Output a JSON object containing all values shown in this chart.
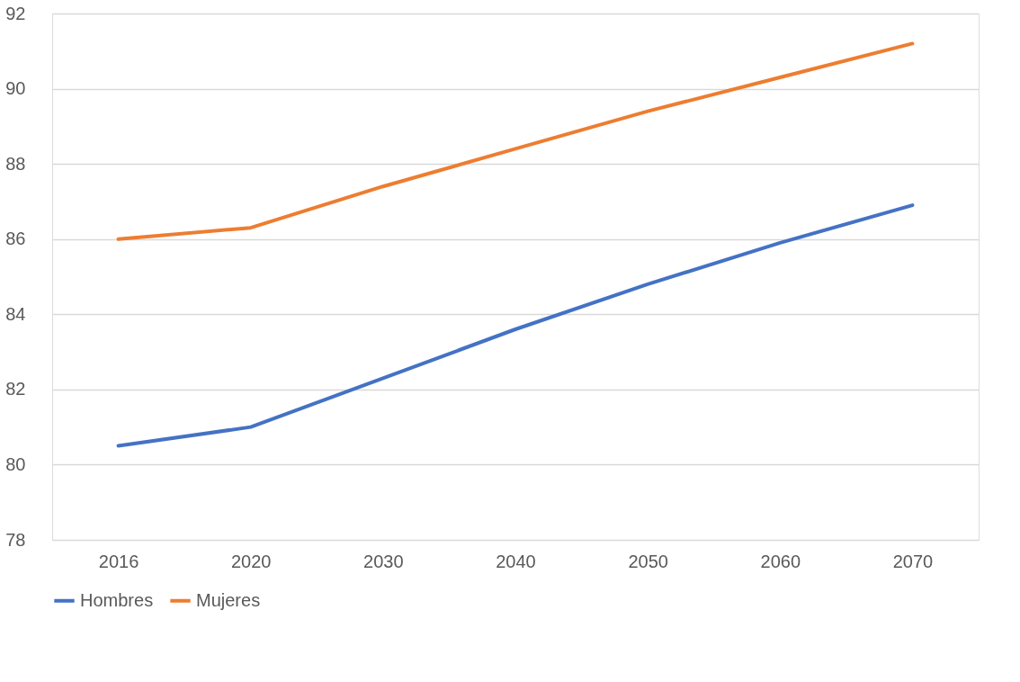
{
  "chart_data": {
    "type": "line",
    "categories": [
      "2016",
      "2020",
      "2030",
      "2040",
      "2050",
      "2060",
      "2070"
    ],
    "series": [
      {
        "name": "Hombres",
        "color": "#4472c4",
        "values": [
          80.5,
          81.0,
          82.3,
          83.6,
          84.8,
          85.9,
          86.9
        ]
      },
      {
        "name": "Mujeres",
        "color": "#ed7d31",
        "values": [
          86.0,
          86.3,
          87.4,
          88.4,
          89.4,
          90.3,
          91.2
        ]
      }
    ],
    "ylim": [
      78,
      92
    ],
    "yticks": [
      78,
      80,
      82,
      84,
      86,
      88,
      90,
      92
    ],
    "grid": "y",
    "legend": "bottom",
    "marker": "none",
    "line_style": "solid"
  }
}
